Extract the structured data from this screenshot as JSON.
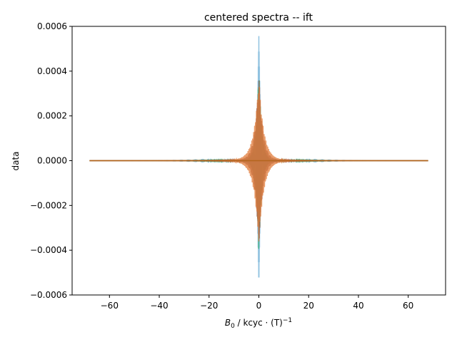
{
  "chart_data": {
    "type": "line",
    "title": "centered spectra -- ift",
    "xlabel": {
      "prefix": "B",
      "sub": "0",
      "mid": " / kcyc · (T)",
      "sup": "−1"
    },
    "ylabel": "data",
    "xlim": [
      -75,
      75
    ],
    "ylim": [
      -0.0006,
      0.0006
    ],
    "x_ticks": [
      {
        "value": -60,
        "label": "−60"
      },
      {
        "value": -40,
        "label": "−40"
      },
      {
        "value": -20,
        "label": "−20"
      },
      {
        "value": 0,
        "label": "0"
      },
      {
        "value": 20,
        "label": "20"
      },
      {
        "value": 40,
        "label": "40"
      },
      {
        "value": 60,
        "label": "60"
      }
    ],
    "y_ticks": [
      {
        "value": 0.0006,
        "label": "0.0006"
      },
      {
        "value": 0.0004,
        "label": "0.0004"
      },
      {
        "value": 0.0002,
        "label": "0.0002"
      },
      {
        "value": 0.0,
        "label": "0.0000"
      },
      {
        "value": -0.0002,
        "label": "−0.0002"
      },
      {
        "value": -0.0004,
        "label": "−0.0004"
      },
      {
        "value": -0.0006,
        "label": "−0.0006"
      }
    ],
    "x_range": [
      -68,
      68
    ],
    "grid": false,
    "series": [
      {
        "color": "#6baed6",
        "amplitude": 0.00055,
        "decay": 0.9,
        "freq": 9.0
      },
      {
        "color": "#3cb371",
        "amplitude": 0.00042,
        "decay": 1.1,
        "freq": 11.0
      },
      {
        "color": "#8c564b",
        "amplitude": 0.00039,
        "decay": 1.5,
        "freq": 13.0
      },
      {
        "color": "#e07b39",
        "amplitude": 0.00036,
        "decay": 2.0,
        "freq": 15.0
      }
    ]
  }
}
